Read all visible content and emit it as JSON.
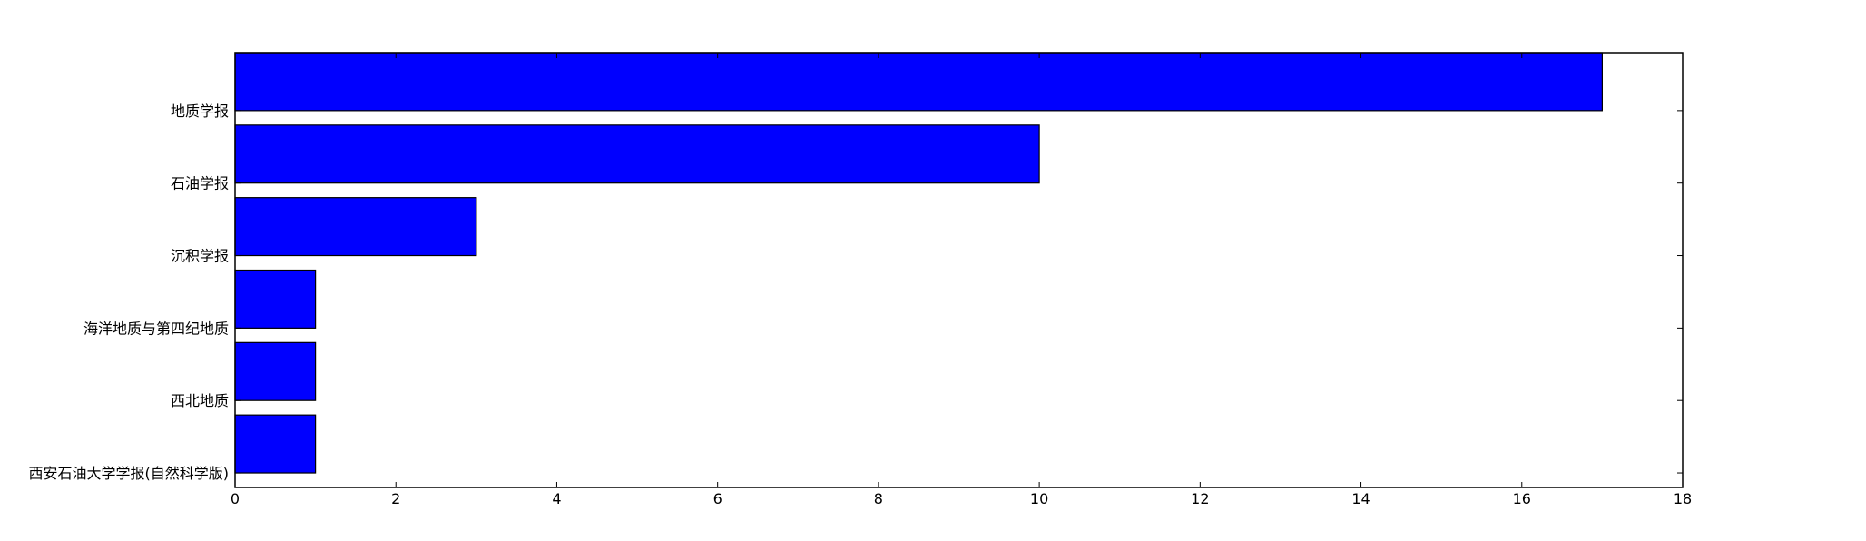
{
  "chart_data": {
    "type": "bar",
    "orientation": "horizontal",
    "categories": [
      "地质学报",
      "石油学报",
      "沉积学报",
      "海洋地质与第四纪地质",
      "西北地质",
      "西安石油大学学报(自然科学版)"
    ],
    "values": [
      17,
      10,
      3,
      1,
      1,
      1
    ],
    "xlim": [
      0,
      18
    ],
    "xticks": [
      "0",
      "2",
      "4",
      "6",
      "8",
      "10",
      "12",
      "14",
      "16",
      "18"
    ],
    "title": "",
    "xlabel": "",
    "ylabel": "",
    "grid": false,
    "bar_color": "#0000ff",
    "edge_color": "#000000"
  }
}
